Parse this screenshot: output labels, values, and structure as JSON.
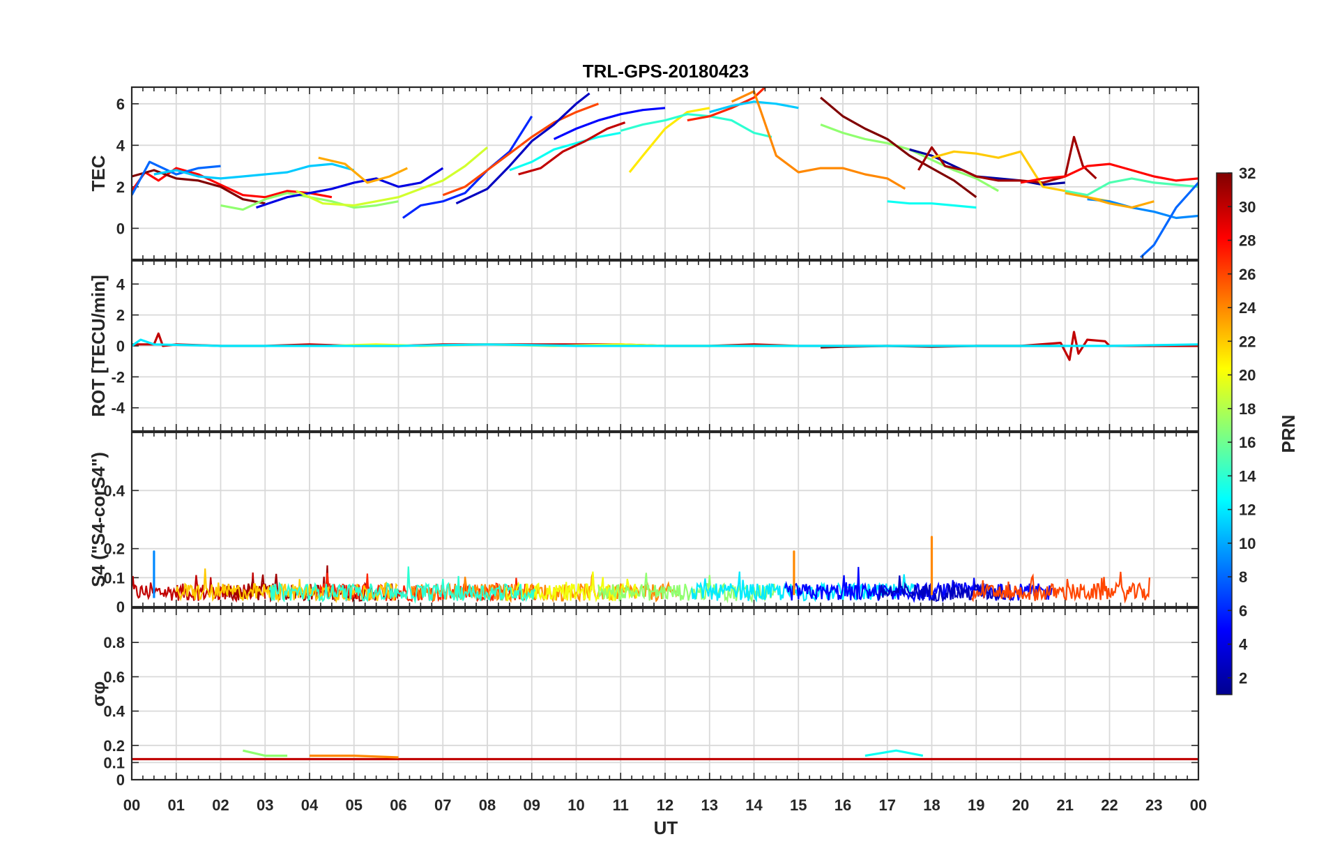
{
  "chart_data": {
    "type": "line",
    "title": "TRL-GPS-20180423",
    "xlabel": "UT",
    "xlim": [
      0,
      24
    ],
    "x_ticks": [
      "00",
      "01",
      "02",
      "03",
      "04",
      "05",
      "06",
      "07",
      "08",
      "09",
      "10",
      "11",
      "12",
      "13",
      "14",
      "15",
      "16",
      "17",
      "18",
      "19",
      "20",
      "21",
      "22",
      "23",
      "00"
    ],
    "colorbar": {
      "label": "PRN",
      "range": [
        1,
        32
      ],
      "ticks": [
        "2",
        "4",
        "6",
        "8",
        "10",
        "12",
        "14",
        "16",
        "18",
        "20",
        "22",
        "24",
        "26",
        "28",
        "30",
        "32"
      ]
    },
    "panels": [
      {
        "ylabel": "TEC",
        "ylim": [
          -1.5,
          6.8
        ],
        "yticks": [
          "0",
          "2",
          "4",
          "6"
        ],
        "series": [
          {
            "prn": 28,
            "x": [
              0,
              0.3,
              0.6,
              1,
              1.5,
              2,
              2.5,
              3,
              3.5,
              4,
              4.5
            ],
            "y": [
              1.8,
              2.7,
              2.3,
              2.9,
              2.6,
              2.1,
              1.6,
              1.5,
              1.8,
              1.7,
              1.5
            ]
          },
          {
            "prn": 32,
            "x": [
              0,
              0.5,
              1,
              1.5,
              2,
              2.5,
              3
            ],
            "y": [
              2.5,
              2.8,
              2.4,
              2.3,
              2.0,
              1.4,
              1.2
            ]
          },
          {
            "prn": 8,
            "x": [
              0,
              0.4,
              1,
              1.5,
              2
            ],
            "y": [
              1.6,
              3.2,
              2.6,
              2.9,
              3.0
            ]
          },
          {
            "prn": 11,
            "x": [
              0.5,
              1,
              1.5,
              2,
              2.5,
              3,
              3.5,
              4,
              4.5,
              5
            ],
            "y": [
              2.6,
              2.8,
              2.5,
              2.4,
              2.5,
              2.6,
              2.7,
              3.0,
              3.1,
              2.8
            ]
          },
          {
            "prn": 17,
            "x": [
              2,
              2.5,
              3,
              3.5,
              4,
              4.5,
              5,
              5.5,
              6
            ],
            "y": [
              1.1,
              0.9,
              1.4,
              1.7,
              1.5,
              1.3,
              1.0,
              1.1,
              1.3
            ]
          },
          {
            "prn": 4,
            "x": [
              2.8,
              3.5,
              4,
              4.5,
              5,
              5.5,
              6,
              6.5,
              7
            ],
            "y": [
              1.0,
              1.5,
              1.7,
              1.9,
              2.2,
              2.4,
              2.0,
              2.2,
              2.9
            ]
          },
          {
            "prn": 23,
            "x": [
              4.2,
              4.8,
              5.3,
              5.8,
              6.2
            ],
            "y": [
              3.4,
              3.1,
              2.2,
              2.5,
              2.9
            ]
          },
          {
            "prn": 19,
            "x": [
              3.7,
              4.3,
              5,
              5.5,
              6,
              6.5,
              7,
              7.5,
              8
            ],
            "y": [
              1.8,
              1.2,
              1.1,
              1.3,
              1.5,
              1.9,
              2.3,
              3.0,
              3.9
            ]
          },
          {
            "prn": 6,
            "x": [
              6.1,
              6.5,
              7,
              7.5,
              8,
              8.5,
              9
            ],
            "y": [
              0.5,
              1.1,
              1.3,
              1.7,
              2.8,
              3.7,
              5.4
            ]
          },
          {
            "prn": 26,
            "x": [
              7,
              7.5,
              8,
              8.5,
              9,
              9.5,
              10,
              10.5
            ],
            "y": [
              1.6,
              2.0,
              2.8,
              3.6,
              4.4,
              5.1,
              5.6,
              6.0
            ]
          },
          {
            "prn": 3,
            "x": [
              7.3,
              8,
              8.5,
              9,
              9.5,
              10,
              10.3
            ],
            "y": [
              1.2,
              1.9,
              3.0,
              4.2,
              5.0,
              6.0,
              6.5
            ]
          },
          {
            "prn": 13,
            "x": [
              8.5,
              9,
              9.5,
              10,
              10.5,
              11
            ],
            "y": [
              2.8,
              3.2,
              3.8,
              4.1,
              4.4,
              4.6
            ]
          },
          {
            "prn": 30,
            "x": [
              8.7,
              9.2,
              9.7,
              10.2,
              10.7,
              11.1
            ],
            "y": [
              2.6,
              2.9,
              3.7,
              4.2,
              4.8,
              5.1
            ]
          },
          {
            "prn": 5,
            "x": [
              9.5,
              10,
              10.5,
              11,
              11.5,
              12
            ],
            "y": [
              4.3,
              4.8,
              5.2,
              5.5,
              5.7,
              5.8
            ]
          },
          {
            "prn": 21,
            "x": [
              11.2,
              11.5,
              12,
              12.5,
              13
            ],
            "y": [
              2.7,
              3.5,
              4.8,
              5.6,
              5.8
            ]
          },
          {
            "prn": 14,
            "x": [
              11,
              11.5,
              12,
              12.5,
              13,
              13.5,
              14,
              14.4
            ],
            "y": [
              4.7,
              5.0,
              5.2,
              5.5,
              5.4,
              5.2,
              4.6,
              4.4
            ]
          },
          {
            "prn": 27,
            "x": [
              12.5,
              13,
              13.5,
              14,
              14.3
            ],
            "y": [
              5.2,
              5.4,
              5.8,
              6.3,
              6.9
            ]
          },
          {
            "prn": 11,
            "x": [
              13,
              13.5,
              14,
              14.5,
              15
            ],
            "y": [
              5.6,
              5.9,
              6.1,
              6.0,
              5.8
            ]
          },
          {
            "prn": 24,
            "x": [
              13.5,
              14,
              14.5,
              15,
              15.5,
              16,
              16.5,
              17,
              17.4
            ],
            "y": [
              6.1,
              6.6,
              3.5,
              2.7,
              2.9,
              2.9,
              2.6,
              2.4,
              1.9
            ]
          },
          {
            "prn": 17,
            "x": [
              15.5,
              16,
              16.5,
              17,
              17.5,
              18,
              18.5,
              19,
              19.5
            ],
            "y": [
              5.0,
              4.6,
              4.3,
              4.1,
              3.8,
              3.3,
              2.8,
              2.4,
              1.8
            ]
          },
          {
            "prn": 32,
            "x": [
              15.5,
              16,
              16.5,
              17,
              17.5,
              18,
              18.5,
              19
            ],
            "y": [
              6.3,
              5.4,
              4.8,
              4.3,
              3.5,
              2.9,
              2.3,
              1.5
            ]
          },
          {
            "prn": 13,
            "x": [
              17,
              17.5,
              18,
              18.5,
              19
            ],
            "y": [
              1.3,
              1.2,
              1.2,
              1.1,
              1.0
            ]
          },
          {
            "prn": 2,
            "x": [
              17.5,
              18,
              18.5,
              19,
              19.5,
              20,
              20.5,
              21
            ],
            "y": [
              3.8,
              3.5,
              3.0,
              2.5,
              2.4,
              2.3,
              2.1,
              2.2
            ]
          },
          {
            "prn": 31,
            "x": [
              17.7,
              18,
              18.3,
              18.7,
              19,
              19.5,
              20,
              20.5,
              21,
              21.2,
              21.4,
              21.7
            ],
            "y": [
              2.8,
              3.9,
              3.0,
              2.8,
              2.5,
              2.3,
              2.3,
              2.2,
              2.5,
              4.4,
              3.0,
              2.4
            ]
          },
          {
            "prn": 22,
            "x": [
              18,
              18.5,
              19,
              19.5,
              20,
              20.5,
              21,
              21.5,
              22
            ],
            "y": [
              3.4,
              3.7,
              3.6,
              3.4,
              3.7,
              2.0,
              1.8,
              1.5,
              1.3
            ]
          },
          {
            "prn": 28,
            "x": [
              20,
              20.5,
              21,
              21.5,
              22,
              22.5,
              23,
              23.5,
              24
            ],
            "y": [
              2.2,
              2.4,
              2.5,
              3.0,
              3.1,
              2.8,
              2.5,
              2.3,
              2.4
            ]
          },
          {
            "prn": 15,
            "x": [
              21,
              21.5,
              22,
              22.5,
              23,
              23.5,
              24
            ],
            "y": [
              1.8,
              1.6,
              2.2,
              2.4,
              2.2,
              2.1,
              2.0
            ]
          },
          {
            "prn": 9,
            "x": [
              21.5,
              22,
              22.5,
              23,
              23.5,
              24
            ],
            "y": [
              1.4,
              1.3,
              1.0,
              0.8,
              0.5,
              0.6
            ]
          },
          {
            "prn": 23,
            "x": [
              21,
              21.5,
              22,
              22.5,
              23
            ],
            "y": [
              1.7,
              1.5,
              1.2,
              1.0,
              1.3
            ]
          },
          {
            "prn": 8,
            "x": [
              22.7,
              23,
              23.5,
              24
            ],
            "y": [
              -1.4,
              -0.8,
              1.0,
              2.2
            ]
          }
        ]
      },
      {
        "ylabel": "ROT [TECU/min]",
        "ylim": [
          -5.5,
          5.5
        ],
        "yticks": [
          "-4",
          "-2",
          "0",
          "2",
          "4"
        ],
        "series": [
          {
            "prn": 30,
            "x": [
              0,
              0.5,
              0.6,
              0.7,
              1,
              2,
              3,
              4,
              5,
              6,
              7,
              8,
              9,
              10,
              11,
              12,
              13,
              14,
              15,
              16,
              17,
              18,
              19,
              20,
              20.9,
              21.1,
              21.2,
              21.3,
              21.5,
              21.9,
              22,
              23,
              24
            ],
            "y": [
              0.1,
              0.1,
              0.8,
              0.0,
              0.1,
              0.0,
              0.0,
              0.1,
              0.0,
              0.0,
              0.1,
              0.1,
              0.1,
              0.1,
              0.1,
              0.0,
              0.0,
              0.1,
              0.0,
              0.0,
              0.0,
              0.0,
              0.0,
              0.0,
              0.2,
              -0.9,
              0.9,
              -0.5,
              0.4,
              0.3,
              0.0,
              0.0,
              0.0
            ]
          },
          {
            "prn": 32,
            "x": [
              15.5,
              16,
              17,
              18,
              19,
              20,
              21
            ],
            "y": [
              -0.1,
              -0.05,
              0.0,
              -0.05,
              0.0,
              0.0,
              0.0
            ]
          },
          {
            "prn": 20,
            "x": [
              4.5,
              5.5,
              6.5,
              8,
              9.5,
              11,
              12,
              13,
              14,
              15
            ],
            "y": [
              0.0,
              0.1,
              0.0,
              0.1,
              0.0,
              0.1,
              0.0,
              0.0,
              0.0,
              0.0
            ]
          },
          {
            "prn": 12,
            "x": [
              0,
              0.2,
              0.5,
              2,
              4,
              6,
              8,
              10,
              12,
              14,
              16,
              18,
              20,
              22,
              24
            ],
            "y": [
              0.0,
              0.4,
              0.1,
              0.0,
              0.0,
              0.0,
              0.1,
              0.0,
              0.0,
              0.0,
              0.0,
              0.0,
              0.0,
              0.0,
              0.1
            ]
          }
        ]
      },
      {
        "ylabel": "S4 (\"S4-corS4\")",
        "ylim": [
          0,
          0.6
        ],
        "yticks": [
          "0",
          "0.1",
          "0.2",
          "0.4"
        ],
        "series": [
          {
            "prn": 9,
            "x": [
              0.5,
              0.5,
              0.5
            ],
            "y": [
              0.05,
              0.19,
              0.03
            ]
          },
          {
            "prn": 24,
            "x": [
              18.0,
              18.0,
              18.0
            ],
            "y": [
              0.05,
              0.24,
              0.04
            ]
          },
          {
            "prn": 24,
            "x": [
              14.9,
              14.9,
              14.9
            ],
            "y": [
              0.05,
              0.19,
              0.04
            ]
          }
        ]
      },
      {
        "ylabel": "σφ",
        "ylim": [
          0,
          1.0
        ],
        "yticks": [
          "0",
          "0.1",
          "0.2",
          "0.4",
          "0.6",
          "0.8"
        ],
        "series": [
          {
            "prn": 30,
            "x": [
              0,
              24
            ],
            "y": [
              0.12,
              0.12
            ]
          },
          {
            "prn": 24,
            "x": [
              4,
              5,
              6
            ],
            "y": [
              0.14,
              0.14,
              0.13
            ]
          },
          {
            "prn": 17,
            "x": [
              2.5,
              3,
              3.5
            ],
            "y": [
              0.17,
              0.14,
              0.14
            ]
          },
          {
            "prn": 13,
            "x": [
              16.5,
              17.2,
              17.8
            ],
            "y": [
              0.14,
              0.17,
              0.14
            ]
          }
        ]
      }
    ]
  }
}
